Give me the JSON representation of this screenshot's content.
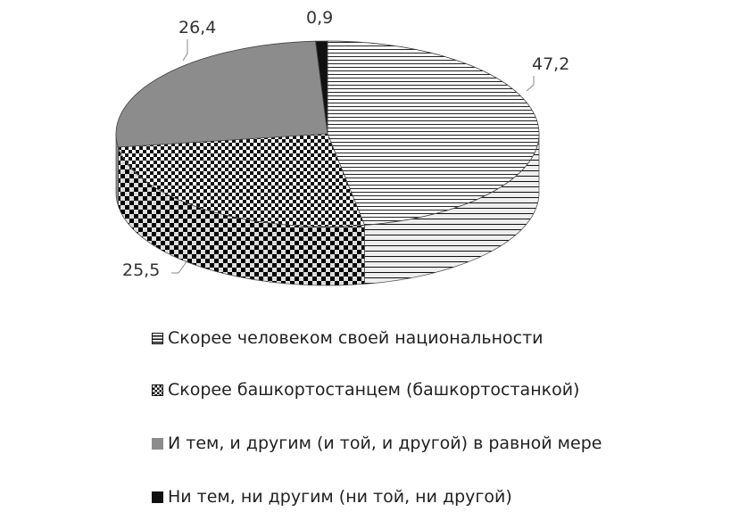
{
  "chart_data": {
    "type": "pie",
    "style": "3d",
    "categories": [
      "Скорее человеком своей национальности",
      "Скорее башкортостанцем (башкортостанкой)",
      "И тем, и другим (и той, и другой) в равной мере",
      "Ни тем, ни другим (ни той, ни другой)"
    ],
    "values": [
      47.2,
      25.5,
      26.4,
      0.9
    ],
    "data_labels": [
      "47,2",
      "25,5",
      "26,4",
      "0,9"
    ],
    "fills": [
      "horizontal-stripes",
      "checkerboard",
      "#8c8c8c",
      "#111111"
    ],
    "legend_position": "bottom"
  }
}
